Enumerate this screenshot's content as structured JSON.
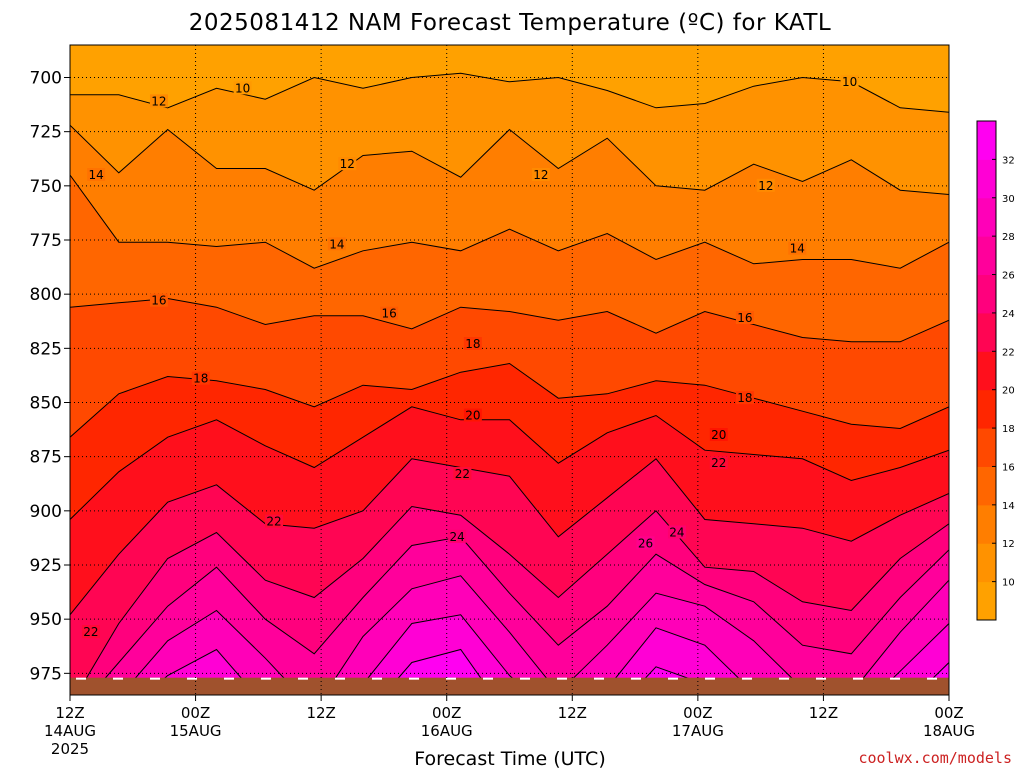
{
  "chart_data": {
    "type": "heatmap",
    "title": "2025081412 NAM Forecast Temperature (ºC) for KATL",
    "xlabel": "Forecast Time (UTC)",
    "ylabel": "",
    "x_ticks": [
      {
        "hour": 0,
        "lines": [
          "12Z",
          "14AUG",
          "2025"
        ]
      },
      {
        "hour": 12,
        "lines": [
          "00Z",
          "15AUG"
        ]
      },
      {
        "hour": 24,
        "lines": [
          "12Z"
        ]
      },
      {
        "hour": 36,
        "lines": [
          "00Z",
          "16AUG"
        ]
      },
      {
        "hour": 48,
        "lines": [
          "12Z"
        ]
      },
      {
        "hour": 60,
        "lines": [
          "00Z",
          "17AUG"
        ]
      },
      {
        "hour": 72,
        "lines": [
          "12Z"
        ]
      },
      {
        "hour": 84,
        "lines": [
          "00Z",
          "18AUG"
        ]
      }
    ],
    "xlim": [
      0,
      84
    ],
    "y_ticks": [
      700,
      725,
      750,
      775,
      800,
      825,
      850,
      875,
      900,
      925,
      950,
      975
    ],
    "ylim": [
      685,
      985
    ],
    "grid": true,
    "colorbar": {
      "ticks": [
        10,
        12,
        14,
        16,
        18,
        20,
        22,
        24,
        26,
        28,
        30,
        32
      ],
      "range": [
        8,
        34
      ],
      "placement": "right"
    },
    "isotherms": [
      {
        "value": 10,
        "pressure": [
          708,
          708,
          714,
          705,
          710,
          700,
          705,
          700,
          698,
          702,
          700,
          706,
          714,
          712,
          704,
          700,
          702,
          714,
          716
        ]
      },
      {
        "value": 12,
        "pressure": [
          722,
          744,
          724,
          742,
          742,
          752,
          736,
          734,
          746,
          724,
          742,
          728,
          750,
          752,
          740,
          748,
          738,
          752,
          754
        ]
      },
      {
        "value": 14,
        "pressure": [
          745,
          776,
          776,
          778,
          776,
          788,
          780,
          776,
          780,
          770,
          780,
          772,
          784,
          776,
          786,
          784,
          784,
          788,
          776
        ]
      },
      {
        "value": 16,
        "pressure": [
          806,
          804,
          802,
          806,
          814,
          810,
          810,
          816,
          806,
          808,
          812,
          808,
          818,
          808,
          814,
          820,
          822,
          822,
          812
        ]
      },
      {
        "value": 18,
        "pressure": [
          866,
          846,
          838,
          840,
          844,
          852,
          842,
          844,
          836,
          832,
          848,
          846,
          840,
          842,
          848,
          854,
          860,
          862,
          852
        ]
      },
      {
        "value": 20,
        "pressure": [
          904,
          882,
          866,
          858,
          870,
          880,
          866,
          852,
          858,
          858,
          878,
          864,
          856,
          872,
          874,
          876,
          886,
          880,
          872
        ]
      },
      {
        "value": 22,
        "pressure": [
          948,
          920,
          896,
          888,
          906,
          908,
          900,
          876,
          880,
          884,
          912,
          894,
          876,
          904,
          906,
          908,
          914,
          902,
          892
        ]
      },
      {
        "value": 24,
        "pressure": [
          990,
          952,
          922,
          910,
          932,
          940,
          922,
          898,
          902,
          920,
          940,
          920,
          900,
          926,
          928,
          942,
          946,
          922,
          906
        ]
      },
      {
        "value": 26,
        "pressure": [
          996,
          970,
          944,
          926,
          950,
          966,
          940,
          916,
          912,
          938,
          962,
          944,
          920,
          934,
          942,
          962,
          966,
          940,
          918
        ]
      },
      {
        "value": 28,
        "pressure": [
          996,
          986,
          960,
          946,
          968,
          992,
          958,
          936,
          930,
          956,
          984,
          962,
          938,
          944,
          960,
          982,
          984,
          956,
          932
        ]
      },
      {
        "value": 30,
        "pressure": [
          996,
          996,
          976,
          964,
          990,
          996,
          980,
          952,
          948,
          976,
          996,
          982,
          954,
          962,
          984,
          996,
          996,
          974,
          952
        ]
      },
      {
        "value": 32,
        "pressure": [
          996,
          996,
          990,
          982,
          996,
          996,
          996,
          970,
          964,
          996,
          996,
          996,
          972,
          980,
          996,
          996,
          996,
          992,
          970
        ]
      }
    ],
    "contour_labels": [
      {
        "text": "10",
        "hour": 16.5,
        "pressure": 705
      },
      {
        "text": "10",
        "hour": 74.5,
        "pressure": 702
      },
      {
        "text": "12",
        "hour": 8.5,
        "pressure": 711
      },
      {
        "text": "12",
        "hour": 26.5,
        "pressure": 740
      },
      {
        "text": "12",
        "hour": 45.0,
        "pressure": 745
      },
      {
        "text": "12",
        "hour": 66.5,
        "pressure": 750
      },
      {
        "text": "14",
        "hour": 2.5,
        "pressure": 745
      },
      {
        "text": "14",
        "hour": 25.5,
        "pressure": 777
      },
      {
        "text": "14",
        "hour": 69.5,
        "pressure": 779
      },
      {
        "text": "16",
        "hour": 8.5,
        "pressure": 803
      },
      {
        "text": "16",
        "hour": 30.5,
        "pressure": 809
      },
      {
        "text": "16",
        "hour": 64.5,
        "pressure": 811
      },
      {
        "text": "18",
        "hour": 12.5,
        "pressure": 839
      },
      {
        "text": "18",
        "hour": 38.5,
        "pressure": 823
      },
      {
        "text": "18",
        "hour": 64.5,
        "pressure": 848
      },
      {
        "text": "20",
        "hour": 38.5,
        "pressure": 856
      },
      {
        "text": "20",
        "hour": 62.0,
        "pressure": 865
      },
      {
        "text": "22",
        "hour": 2.0,
        "pressure": 956
      },
      {
        "text": "22",
        "hour": 19.5,
        "pressure": 905
      },
      {
        "text": "22",
        "hour": 37.5,
        "pressure": 883
      },
      {
        "text": "22",
        "hour": 62.0,
        "pressure": 878
      },
      {
        "text": "24",
        "hour": 37.0,
        "pressure": 912
      },
      {
        "text": "24",
        "hour": 58.0,
        "pressure": 910
      },
      {
        "text": "26",
        "hour": 55.0,
        "pressure": 915
      }
    ],
    "ground_top_pressure": 977
  },
  "credit": "coolwx.com/models",
  "colors": {
    "background": "#ffffff",
    "ground": "#a0522d",
    "gridline": "#000000"
  }
}
